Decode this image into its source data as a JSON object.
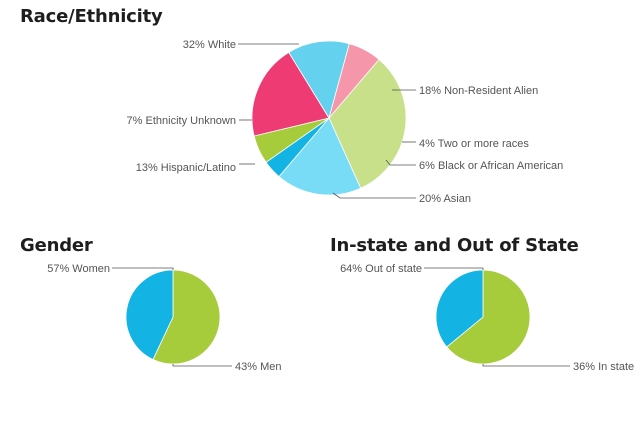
{
  "chart_data": [
    {
      "type": "pie",
      "title": "Race/Ethnicity",
      "slices": [
        {
          "label": "32% White",
          "value": 32,
          "color": "#c8e08a"
        },
        {
          "label": "18% Non-Resident Alien",
          "value": 18,
          "color": "#78dcf7"
        },
        {
          "label": "4% Two or more races",
          "value": 4,
          "color": "#13b3e4"
        },
        {
          "label": "6% Black or African American",
          "value": 6,
          "color": "#a6cc3b"
        },
        {
          "label": "20% Asian",
          "value": 20,
          "color": "#ef3b74"
        },
        {
          "label": "13% Hispanic/Latino",
          "value": 13,
          "color": "#64d2ee"
        },
        {
          "label": "7% Ethnicity Unknown",
          "value": 7,
          "color": "#f596aa"
        }
      ]
    },
    {
      "type": "pie",
      "title": "Gender",
      "slices": [
        {
          "label": "57% Women",
          "value": 57,
          "color": "#a6cc3b"
        },
        {
          "label": "43% Men",
          "value": 43,
          "color": "#13b3e4"
        }
      ]
    },
    {
      "type": "pie",
      "title": "In-state and Out of State",
      "slices": [
        {
          "label": "64% Out of state",
          "value": 64,
          "color": "#a6cc3b"
        },
        {
          "label": "36% In state",
          "value": 36,
          "color": "#13b3e4"
        }
      ]
    }
  ]
}
